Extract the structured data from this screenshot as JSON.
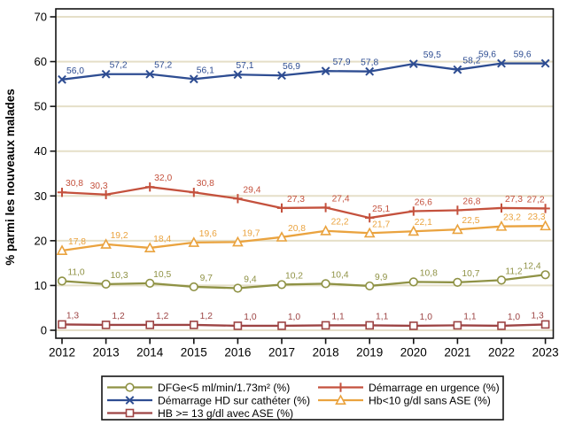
{
  "figure": {
    "background": "#ffffff",
    "frame_color": "#141414",
    "grid_color": "#e5dfc8",
    "text_color": "#000000",
    "legend_border_color": "#141414"
  },
  "chart_data": {
    "type": "line",
    "title": "",
    "xlabel": "",
    "ylabel": "% parmi les nouveaux malades",
    "ylim": [
      0,
      70
    ],
    "yticks": [
      "0",
      "10",
      "20",
      "30",
      "40",
      "50",
      "60",
      "70"
    ],
    "grid": "horizontal",
    "legend_position": "bottom",
    "data_labels": true,
    "decimal_separator": ",",
    "categories": [
      "2012",
      "2013",
      "2014",
      "2015",
      "2016",
      "2017",
      "2018",
      "2019",
      "2020",
      "2021",
      "2022",
      "2023"
    ],
    "series": [
      {
        "name": "DFGe<5 ml/min/1.73m² (%)",
        "marker": "circle",
        "color": "#8f9245",
        "values": [
          11.0,
          10.3,
          10.5,
          9.7,
          9.4,
          10.2,
          10.4,
          9.9,
          10.8,
          10.7,
          11.2,
          12.4
        ]
      },
      {
        "name": "Démarrage HD sur cathéter (%)",
        "marker": "x",
        "color": "#2e4d92",
        "values": [
          56.0,
          57.2,
          57.2,
          56.1,
          57.1,
          56.9,
          57.9,
          57.8,
          59.5,
          58.2,
          59.6,
          59.6
        ]
      },
      {
        "name": "HB >= 13 g/dl avec ASE (%)",
        "marker": "square",
        "color": "#9d4444",
        "values": [
          1.3,
          1.2,
          1.2,
          1.2,
          1.0,
          1.0,
          1.1,
          1.1,
          1.0,
          1.1,
          1.0,
          1.3
        ]
      },
      {
        "name": "Démarrage en urgence (%)",
        "marker": "plus",
        "color": "#c4513d",
        "values": [
          30.8,
          30.3,
          32.0,
          30.8,
          29.4,
          27.3,
          27.4,
          25.1,
          26.6,
          26.8,
          27.3,
          27.2
        ]
      },
      {
        "name": "Hb<10 g/dl sans ASE (%)",
        "marker": "triangle",
        "color": "#eaa33f",
        "values": [
          17.8,
          19.2,
          18.4,
          19.6,
          19.7,
          20.8,
          22.2,
          21.7,
          22.1,
          22.5,
          23.2,
          23.3
        ]
      }
    ],
    "legend_columns": [
      [
        0,
        1,
        2
      ],
      [
        3,
        4
      ]
    ]
  }
}
